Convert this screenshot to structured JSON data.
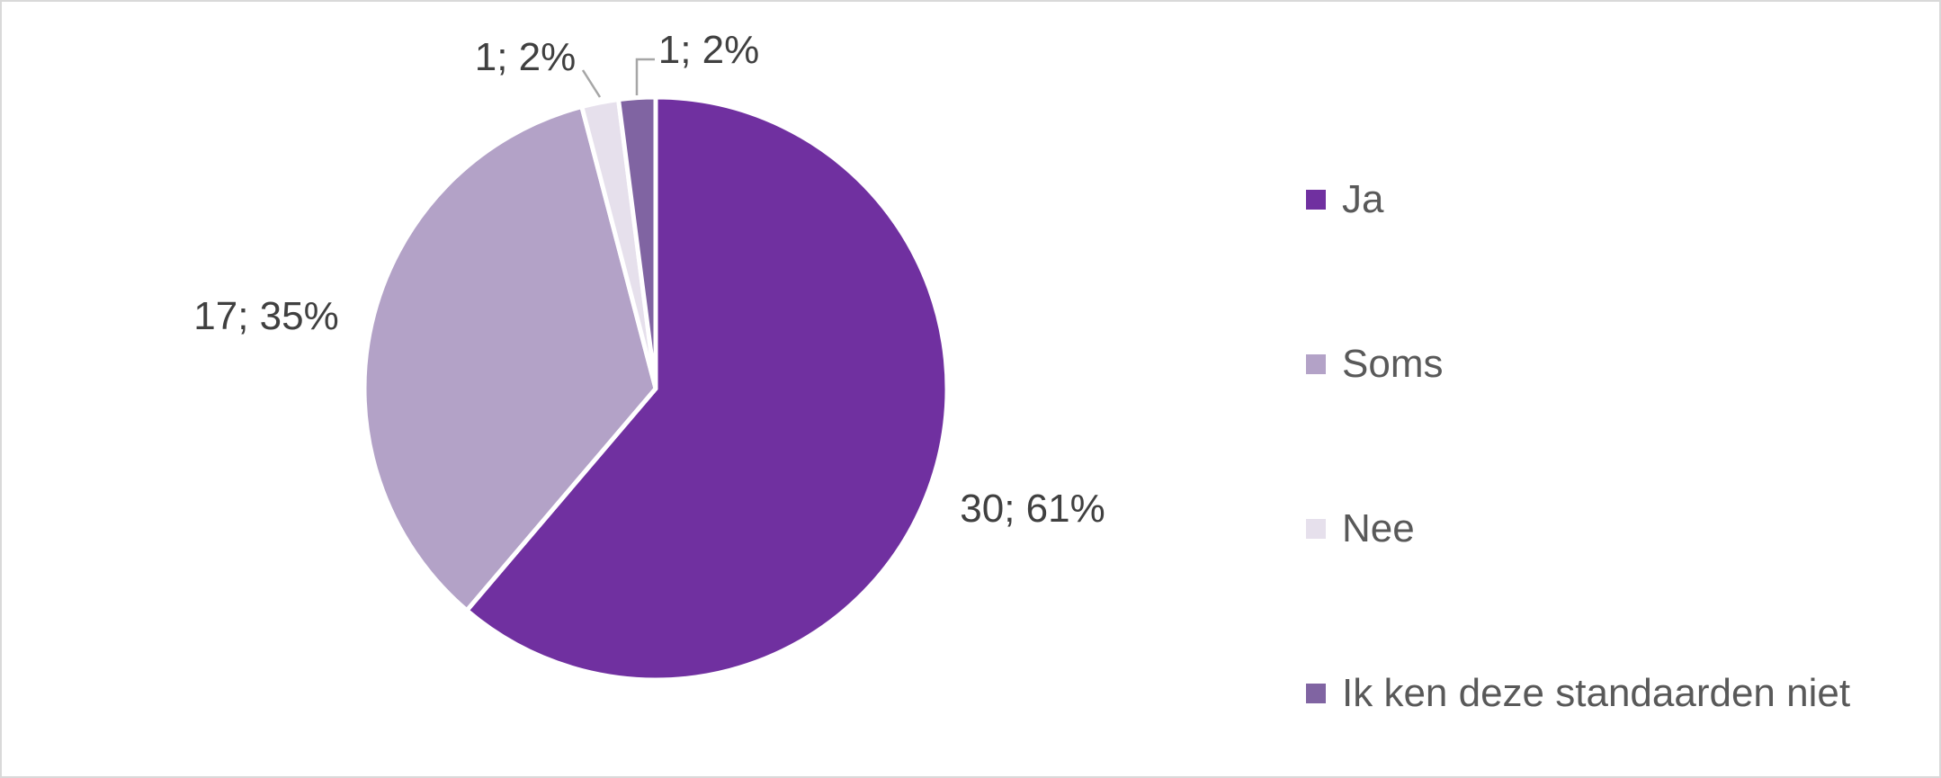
{
  "chart_data": {
    "type": "pie",
    "categories": [
      "Ja",
      "Soms",
      "Nee",
      "Ik ken deze standaarden niet"
    ],
    "values": [
      30,
      17,
      1,
      1
    ],
    "data_labels": [
      "30; 61%",
      "17; 35%",
      "1; 2%",
      "1; 2%"
    ],
    "colors": [
      "#7030a0",
      "#b3a2c7",
      "#e6e0ec",
      "#8064a2"
    ],
    "legend_position": "right"
  }
}
